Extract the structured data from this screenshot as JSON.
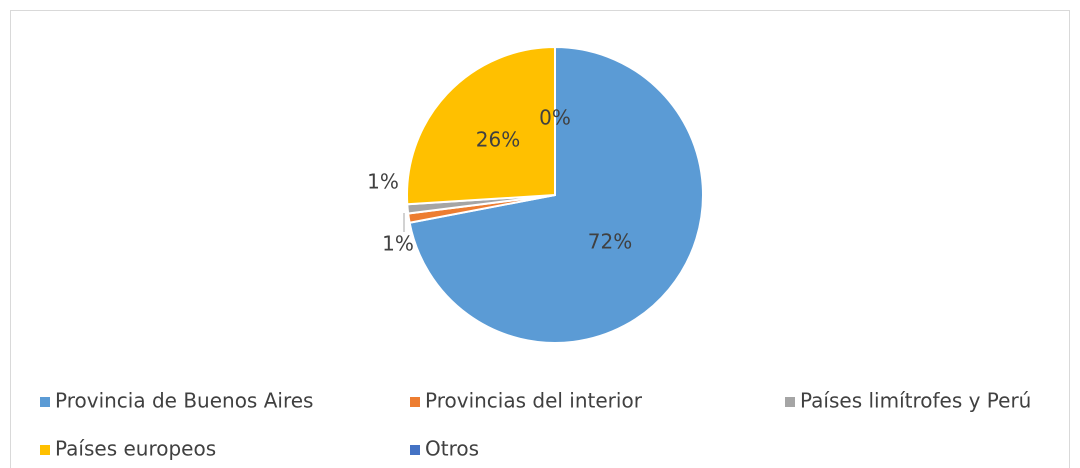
{
  "chart_data": {
    "type": "pie",
    "categories": [
      "Provincia de Buenos Aires",
      "Provincias del interior",
      "Países limítrofes y Perú",
      "Países europeos",
      "Otros"
    ],
    "values": [
      72,
      1,
      1,
      26,
      0
    ],
    "value_labels": [
      "72%",
      "1%",
      "1%",
      "26%",
      "0%"
    ],
    "colors": [
      "#5b9bd5",
      "#ed7d31",
      "#a5a5a5",
      "#ffc000",
      "#4472c4"
    ],
    "legend": "bottom"
  }
}
